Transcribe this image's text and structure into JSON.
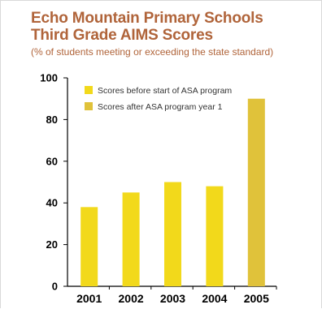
{
  "chart_data": {
    "type": "bar",
    "title_line1": "Echo Mountain Primary Schools",
    "title_line2": "Third Grade AIMS Scores",
    "subtitle": "(% of students meeting or exceeding the state standard)",
    "categories": [
      "2001",
      "2002",
      "2003",
      "2004",
      "2005"
    ],
    "values": [
      38,
      45,
      50,
      48,
      90
    ],
    "series_group": [
      "before",
      "before",
      "before",
      "before",
      "after"
    ],
    "ylim": [
      0,
      100
    ],
    "yticks": [
      0,
      20,
      40,
      60,
      80,
      100
    ],
    "legend": [
      {
        "key": "before",
        "label": "Scores before start of ASA program",
        "color": "#f2d91b"
      },
      {
        "key": "after",
        "label": "Scores after ASA program year 1",
        "color": "#e0c23a"
      }
    ],
    "legend_position": "top-left",
    "grid": false
  },
  "colors": {
    "title": "#b0643a",
    "bar_before": "#f2d91b",
    "bar_after": "#e0c23a",
    "axis": "#000000"
  }
}
